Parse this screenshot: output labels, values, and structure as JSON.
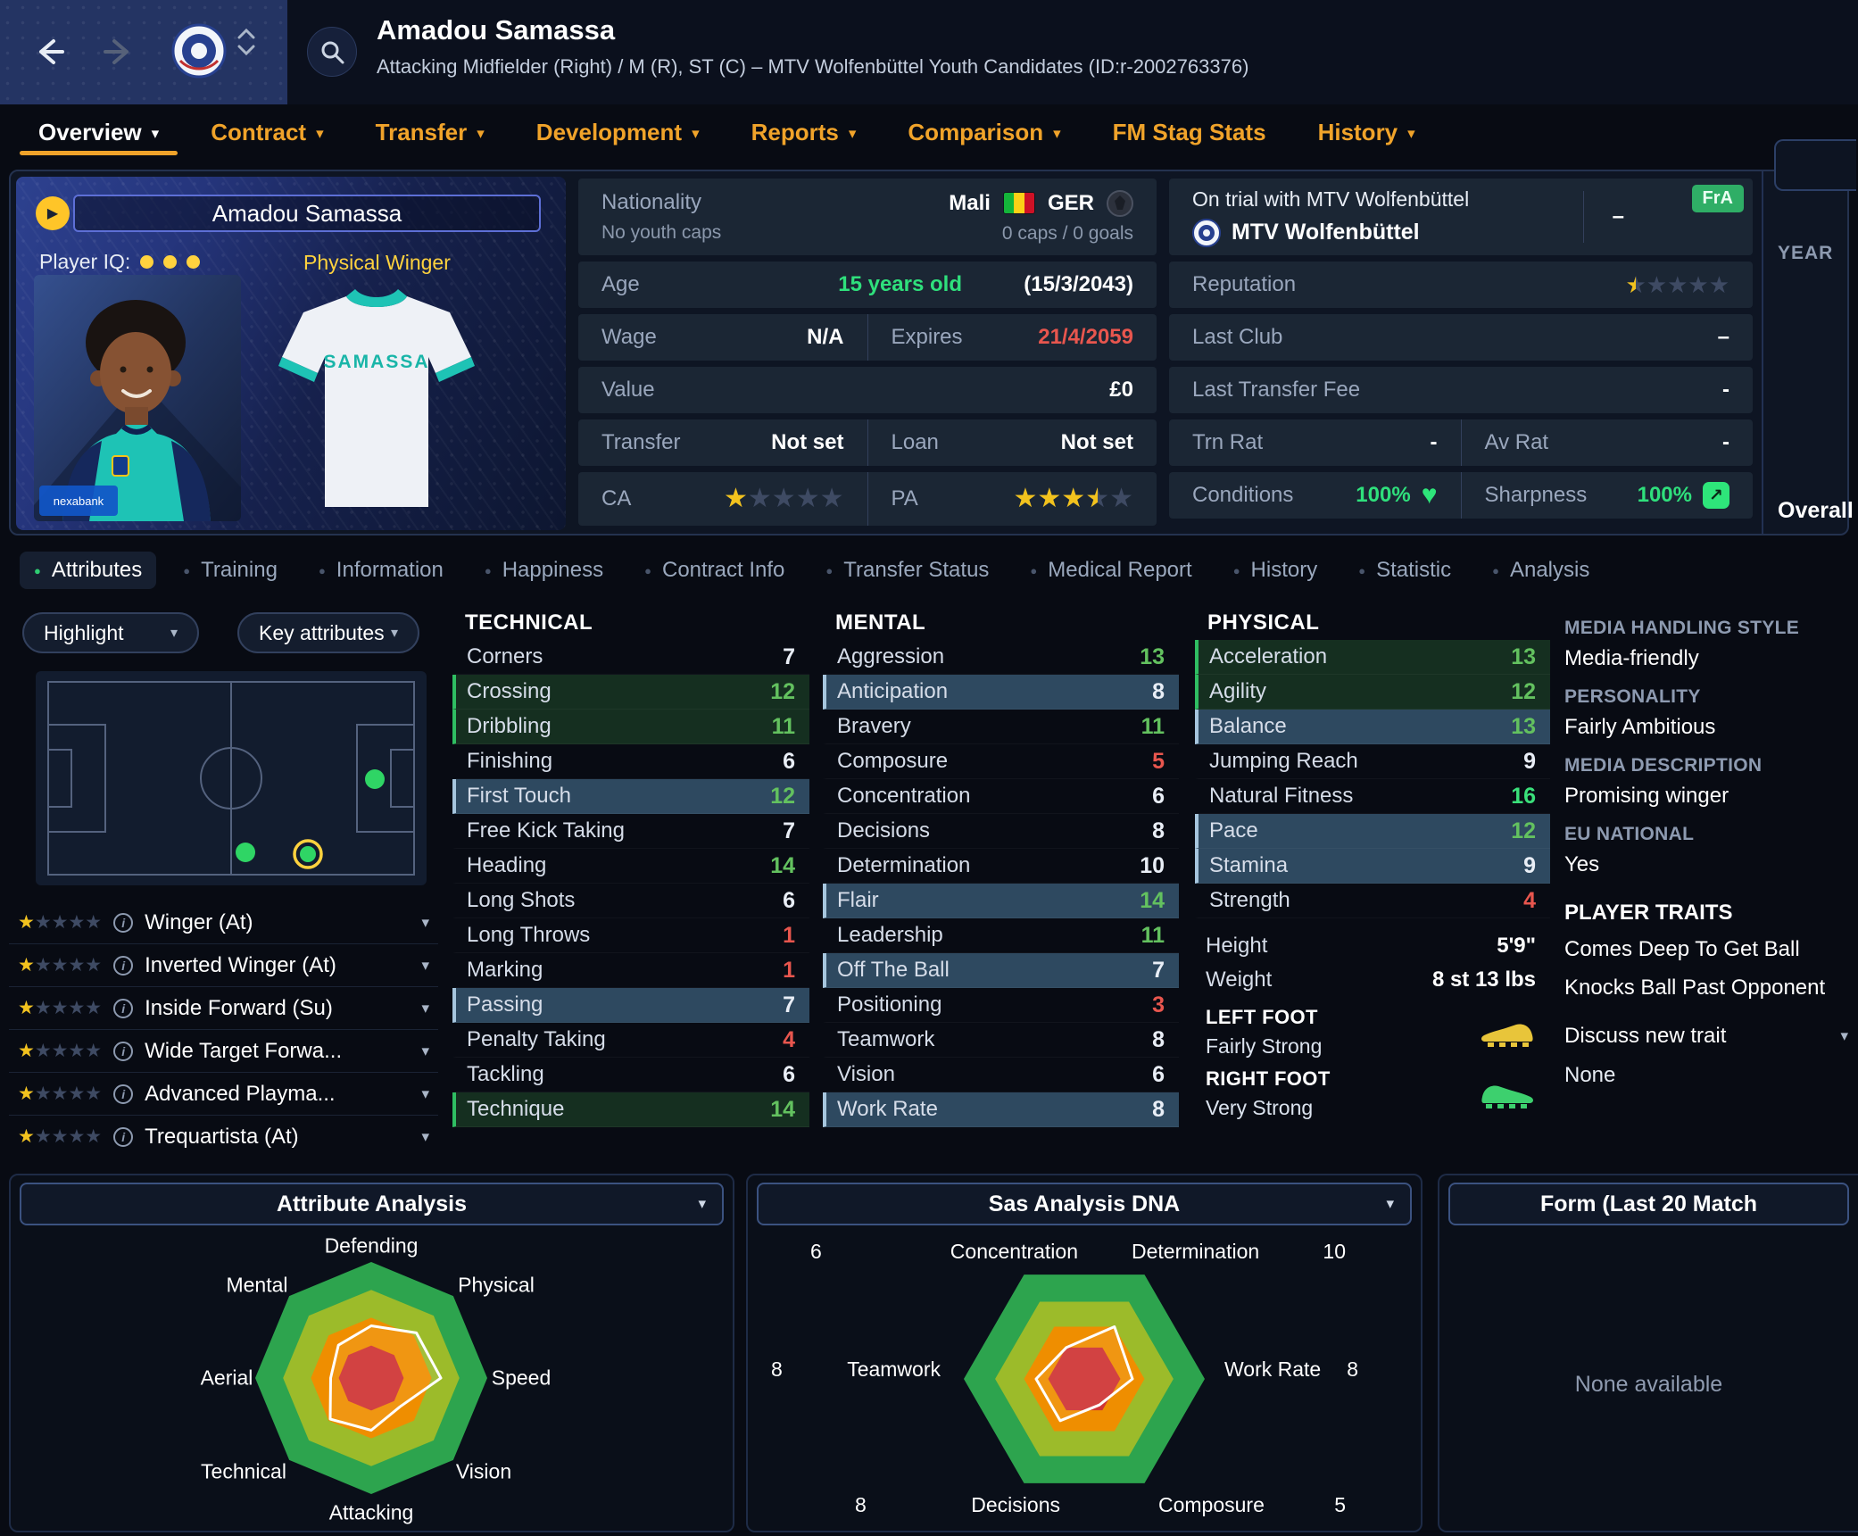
{
  "icons": {
    "chevron_down": "▾",
    "dot": "●",
    "heart": "♥",
    "info": "i",
    "play": "▶",
    "sharpness_arrow": "↗",
    "star": "★"
  },
  "topbar": {
    "player_name": "Amadou Samassa",
    "player_subtitle": "Attacking Midfielder (Right) / M (R), ST (C) – MTV Wolfenbüttel Youth Candidates (ID:r-2002763376)"
  },
  "main_tabs": [
    {
      "label": "Overview",
      "active": true
    },
    {
      "label": "Contract"
    },
    {
      "label": "Transfer"
    },
    {
      "label": "Development"
    },
    {
      "label": "Reports"
    },
    {
      "label": "Comparison"
    },
    {
      "label": "FM Stag Stats",
      "chevron": false
    },
    {
      "label": "History"
    }
  ],
  "player_card": {
    "name": "Amadou Samassa",
    "iq_label": "Player IQ:",
    "style": "Physical Winger",
    "jersey_name": "SAMASSA",
    "sponsor": "nexabank"
  },
  "info_left": {
    "nationality_label": "Nationality",
    "youth_caps": "No youth caps",
    "nation1": "Mali",
    "nation2": "GER",
    "caps": "0 caps / 0 goals",
    "age_label": "Age",
    "age_value": "15 years old",
    "birth_date": "(15/3/2043)",
    "wage_label": "Wage",
    "wage_value": "N/A",
    "expires_label": "Expires",
    "expires_value": "21/4/2059",
    "value_label": "Value",
    "value_value": "£0",
    "transfer_label": "Transfer",
    "transfer_value": "Not set",
    "loan_label": "Loan",
    "loan_value": "Not set",
    "ca_label": "CA",
    "ca_stars": 1,
    "pa_label": "PA",
    "pa_stars": 3.5
  },
  "info_right": {
    "trial_text": "On trial with MTV Wolfenbüttel",
    "club_name": "MTV Wolfenbüttel",
    "club_dash": "–",
    "fra_badge": "FrA",
    "reputation_label": "Reputation",
    "reputation_stars": 0.5,
    "last_club_label": "Last Club",
    "last_club_value": "–",
    "last_fee_label": "Last Transfer Fee",
    "last_fee_value": "-",
    "trn_rat_label": "Trn Rat",
    "trn_rat_value": "-",
    "av_rat_label": "Av Rat",
    "av_rat_value": "-",
    "conditions_label": "Conditions",
    "conditions_value": "100%",
    "sharpness_label": "Sharpness",
    "sharpness_value": "100%"
  },
  "side_panel": {
    "year_label": "YEAR",
    "overall_label": "Overall"
  },
  "sub_tabs": [
    {
      "label": "Attributes",
      "active": true
    },
    {
      "label": "Training"
    },
    {
      "label": "Information"
    },
    {
      "label": "Happiness"
    },
    {
      "label": "Contract Info"
    },
    {
      "label": "Transfer Status"
    },
    {
      "label": "Medical Report"
    },
    {
      "label": "History"
    },
    {
      "label": "Statistic"
    },
    {
      "label": "Analysis"
    }
  ],
  "filters": {
    "highlight": "Highlight",
    "key_attributes": "Key attributes"
  },
  "positions": [
    {
      "name": "Winger (At)",
      "stars": 1
    },
    {
      "name": "Inverted Winger (At)",
      "stars": 1
    },
    {
      "name": "Inside Forward (Su)",
      "stars": 1
    },
    {
      "name": "Wide Target Forwa...",
      "stars": 1
    },
    {
      "name": "Advanced Playma...",
      "stars": 1
    },
    {
      "name": "Trequartista (At)",
      "stars": 1
    }
  ],
  "attributes": {
    "technical": {
      "title": "TECHNICAL",
      "rows": [
        {
          "name": "Corners",
          "value": 7
        },
        {
          "name": "Crossing",
          "value": 12,
          "hl": "green"
        },
        {
          "name": "Dribbling",
          "value": 11,
          "hl": "green"
        },
        {
          "name": "Finishing",
          "value": 6
        },
        {
          "name": "First Touch",
          "value": 12,
          "hl": "blue"
        },
        {
          "name": "Free Kick Taking",
          "value": 7
        },
        {
          "name": "Heading",
          "value": 14
        },
        {
          "name": "Long Shots",
          "value": 6
        },
        {
          "name": "Long Throws",
          "value": 1
        },
        {
          "name": "Marking",
          "value": 1
        },
        {
          "name": "Passing",
          "value": 7,
          "hl": "blue"
        },
        {
          "name": "Penalty Taking",
          "value": 4
        },
        {
          "name": "Tackling",
          "value": 6
        },
        {
          "name": "Technique",
          "value": 14,
          "hl": "green"
        }
      ]
    },
    "mental": {
      "title": "MENTAL",
      "rows": [
        {
          "name": "Aggression",
          "value": 13
        },
        {
          "name": "Anticipation",
          "value": 8,
          "hl": "blue"
        },
        {
          "name": "Bravery",
          "value": 11
        },
        {
          "name": "Composure",
          "value": 5
        },
        {
          "name": "Concentration",
          "value": 6
        },
        {
          "name": "Decisions",
          "value": 8
        },
        {
          "name": "Determination",
          "value": 10
        },
        {
          "name": "Flair",
          "value": 14,
          "hl": "blue"
        },
        {
          "name": "Leadership",
          "value": 11
        },
        {
          "name": "Off The Ball",
          "value": 7,
          "hl": "blue"
        },
        {
          "name": "Positioning",
          "value": 3
        },
        {
          "name": "Teamwork",
          "value": 8
        },
        {
          "name": "Vision",
          "value": 6
        },
        {
          "name": "Work Rate",
          "value": 8,
          "hl": "blue"
        }
      ]
    },
    "physical": {
      "title": "PHYSICAL",
      "rows": [
        {
          "name": "Acceleration",
          "value": 13,
          "hl": "green"
        },
        {
          "name": "Agility",
          "value": 12,
          "hl": "green"
        },
        {
          "name": "Balance",
          "value": 13,
          "hl": "blue"
        },
        {
          "name": "Jumping Reach",
          "value": 9
        },
        {
          "name": "Natural Fitness",
          "value": 16
        },
        {
          "name": "Pace",
          "value": 12,
          "hl": "blue"
        },
        {
          "name": "Stamina",
          "value": 9,
          "hl": "blue"
        },
        {
          "name": "Strength",
          "value": 4
        }
      ]
    }
  },
  "body_info": {
    "height_label": "Height",
    "height_value": "5'9\"",
    "weight_label": "Weight",
    "weight_value": "8 st 13 lbs",
    "left_foot_label": "LEFT FOOT",
    "left_foot_value": "Fairly Strong",
    "right_foot_label": "RIGHT FOOT",
    "right_foot_value": "Very Strong"
  },
  "right_column": {
    "media_style_label": "MEDIA HANDLING STYLE",
    "media_style_value": "Media-friendly",
    "personality_label": "PERSONALITY",
    "personality_value": "Fairly Ambitious",
    "media_desc_label": "MEDIA DESCRIPTION",
    "media_desc_value": "Promising winger",
    "eu_label": "EU NATIONAL",
    "eu_value": "Yes",
    "traits_label": "PLAYER TRAITS",
    "traits": [
      "Comes Deep To Get Ball",
      "Knocks Ball Past Opponent"
    ],
    "discuss_trait": "Discuss new trait",
    "discuss_value": "None"
  },
  "panels": {
    "attribute_analysis_title": "Attribute Analysis",
    "dna_title": "Sas Analysis DNA",
    "form_title": "Form (Last 20 Match",
    "form_empty": "None available"
  },
  "chart_data": [
    {
      "type": "radar",
      "title": "Attribute Analysis",
      "axes": [
        "Defending",
        "Physical",
        "Speed",
        "Vision",
        "Attacking",
        "Technical",
        "Aerial",
        "Mental"
      ],
      "values": [
        9,
        11,
        12,
        7,
        9,
        10,
        7,
        8
      ],
      "max": 20,
      "start_angle": 90,
      "legend": "none",
      "grid": false,
      "bands": [
        [
          1,
          "#2da44e"
        ],
        [
          0.76,
          "#9cbb2a"
        ],
        [
          0.52,
          "#ef8e00"
        ],
        [
          0.28,
          "#cf3434"
        ]
      ]
    },
    {
      "type": "radar",
      "title": "Sas Analysis DNA",
      "axes": [
        "Concentration",
        "Determination",
        "Work Rate",
        "Composure",
        "Decisions",
        "Teamwork"
      ],
      "values": [
        6,
        10,
        8,
        5,
        8,
        8
      ],
      "max": 20,
      "start_angle": 120,
      "legend": "none",
      "grid": false,
      "bands": [
        [
          1,
          "#2da44e"
        ],
        [
          0.74,
          "#9cbb2a"
        ],
        [
          0.5,
          "#ef8e00"
        ],
        [
          0.3,
          "#cf3434"
        ]
      ]
    }
  ]
}
